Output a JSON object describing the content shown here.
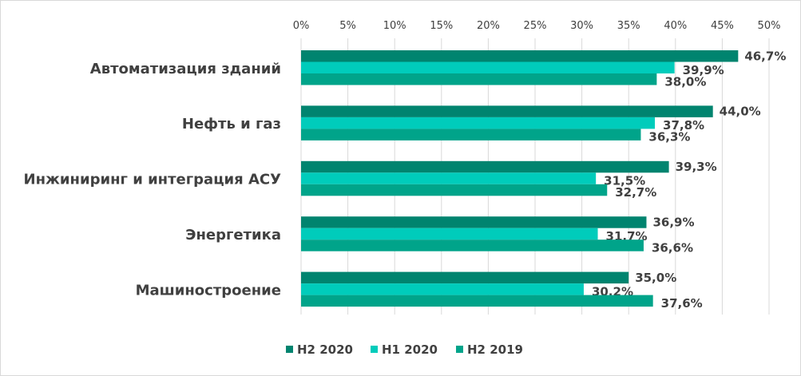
{
  "chart_data": {
    "type": "bar",
    "orientation": "horizontal",
    "title": "",
    "xlabel": "",
    "ylabel": "",
    "xlim": [
      0,
      50
    ],
    "x_ticks": [
      "0%",
      "5%",
      "10%",
      "15%",
      "20%",
      "25%",
      "30%",
      "35%",
      "40%",
      "45%",
      "50%"
    ],
    "x_tick_values": [
      0,
      5,
      10,
      15,
      20,
      25,
      30,
      35,
      40,
      45,
      50
    ],
    "grid": "vertical",
    "legend_position": "bottom",
    "categories": [
      "Автоматизация зданий",
      "Нефть и газ",
      "Инжиниринг и интеграция АСУ",
      "Энергетика",
      "Машиностроение"
    ],
    "series": [
      {
        "name": "H2 2020",
        "color": "#00846f",
        "values": [
          46.7,
          44.0,
          39.3,
          36.9,
          35.0
        ],
        "labels": [
          "46,7%",
          "44,0%",
          "39,3%",
          "36,9%",
          "35,0%"
        ]
      },
      {
        "name": "H1 2020",
        "color": "#00ccbb",
        "values": [
          39.9,
          37.8,
          31.5,
          31.7,
          30.2
        ],
        "labels": [
          "39,9%",
          "37,8%",
          "31,5%",
          "31,7%",
          "30,2%"
        ]
      },
      {
        "name": "H2 2019",
        "color": "#00a48a",
        "values": [
          38.0,
          36.3,
          32.7,
          36.6,
          37.6
        ],
        "labels": [
          "38,0%",
          "36,3%",
          "32,7%",
          "36,6%",
          "37,6%"
        ]
      }
    ]
  }
}
